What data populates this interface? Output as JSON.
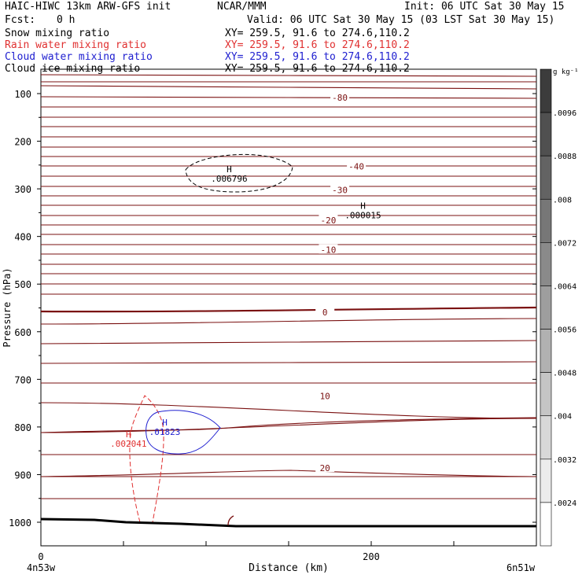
{
  "header": {
    "model": "HAIC-HIWC 13km ARW-GFS init",
    "org": "NCAR/MMM",
    "init": "Init: 06 UTC Sat 30 May 15",
    "fcst_label": "Fcst:",
    "fcst_value": "0 h",
    "valid": "Valid: 06 UTC Sat 30 May 15 (03 LST Sat 30 May 15)",
    "fields": [
      {
        "name": "Snow mixing ratio",
        "xy": "XY= 259.5, 91.6 to 274.6,110.2",
        "color": "#000000"
      },
      {
        "name": "Rain water mixing ratio",
        "xy": "XY= 259.5, 91.6 to 274.6,110.2",
        "color": "#e03030"
      },
      {
        "name": "Cloud water mixing ratio",
        "xy": "XY= 259.5, 91.6 to 274.6,110.2",
        "color": "#2020d0"
      },
      {
        "name": "Cloud ice mixing ratio",
        "xy": "XY= 259.5, 91.6 to 274.6,110.2",
        "color": "#000000"
      }
    ]
  },
  "chart_data": {
    "type": "cross-section contour",
    "ylabel": "Pressure (hPa)",
    "xlabel": "Distance (km)",
    "y_ticks": [
      100,
      200,
      300,
      400,
      500,
      600,
      700,
      800,
      900,
      1000
    ],
    "ylim": [
      1050,
      50
    ],
    "x_ticks": [
      0,
      200
    ],
    "xlim": [
      0,
      300
    ],
    "x_start_label": "4n53w",
    "x_end_label": "6n51w",
    "temperature_contours": {
      "color": "#7a1010",
      "labels": [
        {
          "value": "-80",
          "x": 181,
          "p": 108
        },
        {
          "value": "-40",
          "x": 191,
          "p": 253
        },
        {
          "value": "-30",
          "x": 181,
          "p": 302
        },
        {
          "value": "-20",
          "x": 174,
          "p": 366
        },
        {
          "value": "-10",
          "x": 174,
          "p": 428
        },
        {
          "value": "0",
          "x": 172,
          "p": 559
        },
        {
          "value": "10",
          "x": 172,
          "p": 735
        },
        {
          "value": "20",
          "x": 172,
          "p": 886
        }
      ]
    },
    "maxima": [
      {
        "label": "H",
        "value": ".006796",
        "x": 114,
        "p": 278,
        "color": "#000000"
      },
      {
        "label": "H",
        "value": ".000015",
        "x": 195,
        "p": 355,
        "color": "#000000"
      },
      {
        "label": "H",
        "value": ".01823",
        "x": 75,
        "p": 810,
        "color": "#2020d0"
      },
      {
        "label": "H",
        "value": ".002041",
        "x": 53,
        "p": 835,
        "color": "#e03030"
      }
    ],
    "colorbar": {
      "unit": "g kg⁻¹",
      "levels": [
        ".0096",
        ".0088",
        ".008",
        ".0072",
        ".0064",
        ".0056",
        ".0048",
        ".004",
        ".0032",
        ".0024"
      ]
    }
  }
}
